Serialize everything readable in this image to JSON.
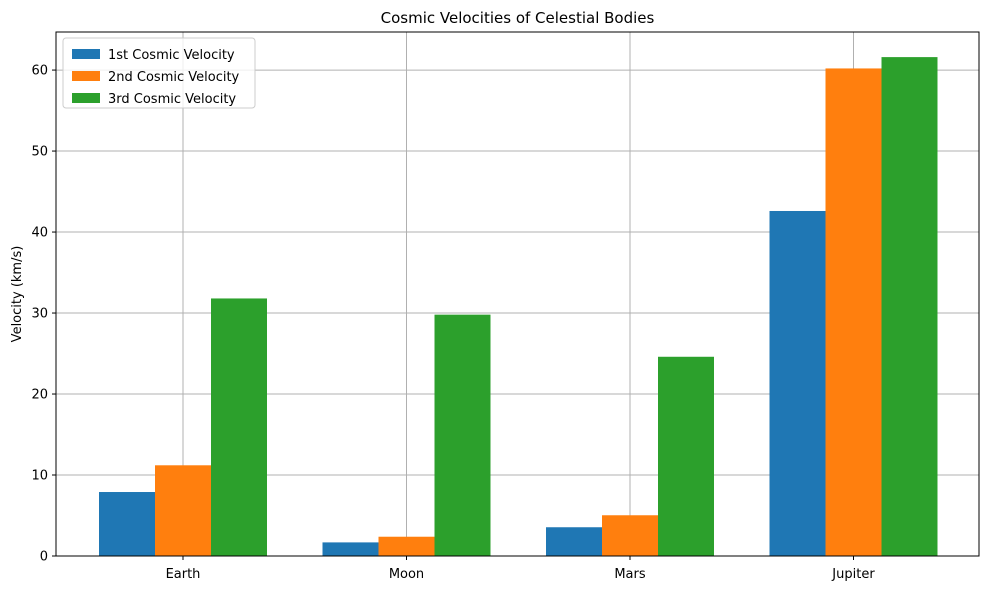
{
  "chart_data": {
    "type": "bar",
    "title": "Cosmic Velocities of Celestial Bodies",
    "xlabel": "",
    "ylabel": "Velocity (km/s)",
    "categories": [
      "Earth",
      "Moon",
      "Mars",
      "Jupiter"
    ],
    "series": [
      {
        "name": "1st Cosmic Velocity",
        "color": "#1f77b4",
        "values": [
          7.9,
          1.68,
          3.55,
          42.6
        ]
      },
      {
        "name": "2nd Cosmic Velocity",
        "color": "#ff7f0e",
        "values": [
          11.2,
          2.38,
          5.03,
          60.2
        ]
      },
      {
        "name": "3rd Cosmic Velocity",
        "color": "#2ca02c",
        "values": [
          31.8,
          29.8,
          24.6,
          61.6
        ]
      }
    ],
    "ylim": [
      0,
      64.7
    ],
    "yticks": [
      0,
      10,
      20,
      30,
      40,
      50,
      60
    ],
    "grid": true,
    "legend_position": "top-left"
  }
}
